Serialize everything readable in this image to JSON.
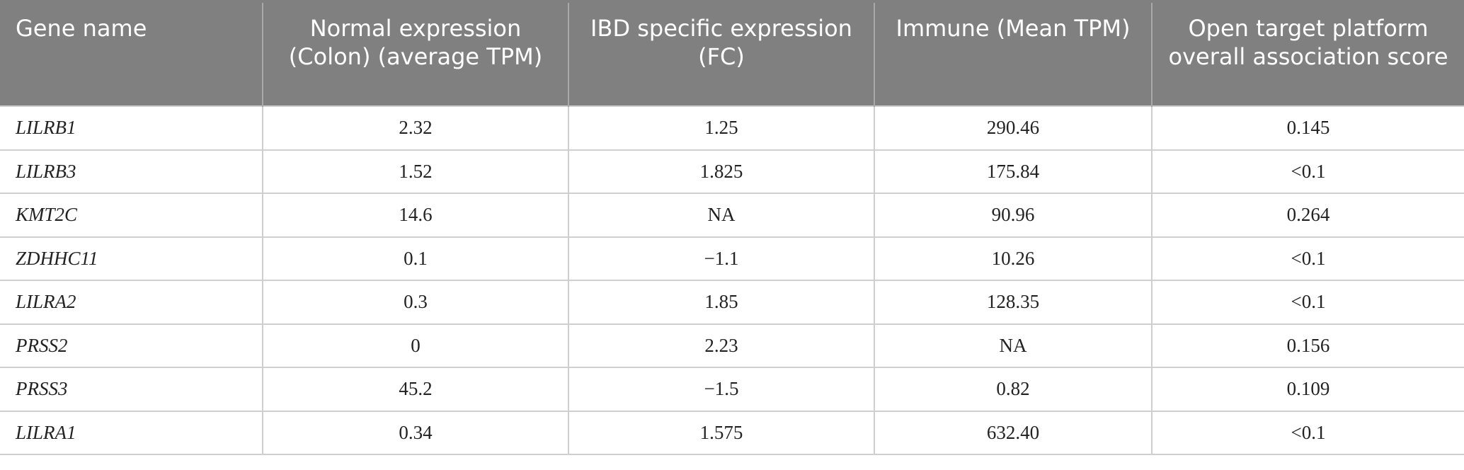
{
  "table": {
    "headers": [
      "Gene name",
      "Normal expression (Colon) (average TPM)",
      "IBD specific expression (FC)",
      "Immune (Mean TPM)",
      "Open target platform overall association score"
    ],
    "rows": [
      [
        "LILRB1",
        "2.32",
        "1.25",
        "290.46",
        "0.145"
      ],
      [
        "LILRB3",
        "1.52",
        "1.825",
        "175.84",
        "<0.1"
      ],
      [
        "KMT2C",
        "14.6",
        "NA",
        "90.96",
        "0.264"
      ],
      [
        "ZDHHC11",
        "0.1",
        "−1.1",
        "10.26",
        "<0.1"
      ],
      [
        "LILRA2",
        "0.3",
        "1.85",
        "128.35",
        "<0.1"
      ],
      [
        "PRSS2",
        "0",
        "2.23",
        "NA",
        "0.156"
      ],
      [
        "PRSS3",
        "45.2",
        "−1.5",
        "0.82",
        "0.109"
      ],
      [
        "LILRA1",
        "0.34",
        "1.575",
        "632.40",
        "<0.1"
      ]
    ]
  },
  "colors": {
    "header_background": "#7f807f",
    "header_text": "#ffffff",
    "grid_line": "#cfcfcf"
  }
}
